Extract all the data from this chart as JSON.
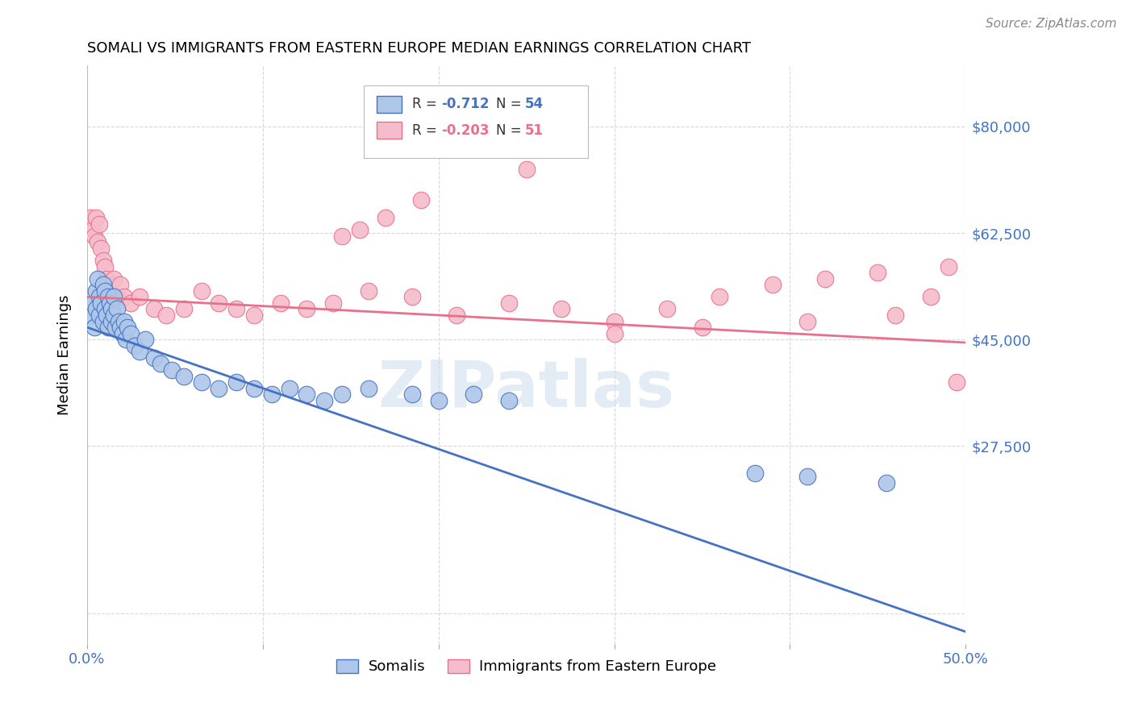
{
  "title": "SOMALI VS IMMIGRANTS FROM EASTERN EUROPE MEDIAN EARNINGS CORRELATION CHART",
  "source": "Source: ZipAtlas.com",
  "ylabel": "Median Earnings",
  "watermark": "ZIPatlas",
  "xlim": [
    0.0,
    0.5
  ],
  "ylim": [
    -5000,
    90000
  ],
  "yticks": [
    0,
    27500,
    45000,
    62500,
    80000
  ],
  "ytick_labels": [
    "",
    "$27,500",
    "$45,000",
    "$62,500",
    "$80,000"
  ],
  "xticks": [
    0.0,
    0.1,
    0.2,
    0.3,
    0.4,
    0.5
  ],
  "xtick_labels": [
    "0.0%",
    "",
    "",
    "",
    "",
    "50.0%"
  ],
  "grid_color": "#d8d8d8",
  "background_color": "#ffffff",
  "tick_color": "#4472c4",
  "somali_color": "#aec6e8",
  "somali_edge_color": "#4472c4",
  "eastern_europe_color": "#f5bccb",
  "eastern_europe_edge_color": "#e8708a",
  "regression_blue_color": "#4472c4",
  "regression_pink_color": "#e8708a",
  "somali_label": "Somalis",
  "eastern_europe_label": "Immigrants from Eastern Europe",
  "somali_x": [
    0.002,
    0.003,
    0.004,
    0.005,
    0.005,
    0.006,
    0.007,
    0.007,
    0.008,
    0.009,
    0.009,
    0.01,
    0.01,
    0.011,
    0.012,
    0.012,
    0.013,
    0.014,
    0.014,
    0.015,
    0.015,
    0.016,
    0.017,
    0.018,
    0.019,
    0.02,
    0.021,
    0.022,
    0.023,
    0.025,
    0.027,
    0.03,
    0.033,
    0.038,
    0.042,
    0.048,
    0.055,
    0.065,
    0.075,
    0.085,
    0.095,
    0.105,
    0.115,
    0.125,
    0.135,
    0.145,
    0.16,
    0.185,
    0.2,
    0.22,
    0.24,
    0.38,
    0.41,
    0.455
  ],
  "somali_y": [
    49000,
    51000,
    47000,
    53000,
    50000,
    55000,
    52000,
    49000,
    51000,
    48000,
    54000,
    50000,
    53000,
    49000,
    52000,
    47000,
    51000,
    50000,
    48000,
    52000,
    49000,
    47000,
    50000,
    48000,
    47000,
    46000,
    48000,
    45000,
    47000,
    46000,
    44000,
    43000,
    45000,
    42000,
    41000,
    40000,
    39000,
    38000,
    37000,
    38000,
    37000,
    36000,
    37000,
    36000,
    35000,
    36000,
    37000,
    36000,
    35000,
    36000,
    35000,
    23000,
    22500,
    21500
  ],
  "eastern_x": [
    0.002,
    0.003,
    0.004,
    0.005,
    0.006,
    0.007,
    0.008,
    0.009,
    0.01,
    0.011,
    0.012,
    0.013,
    0.015,
    0.017,
    0.019,
    0.021,
    0.025,
    0.03,
    0.038,
    0.045,
    0.055,
    0.065,
    0.075,
    0.085,
    0.095,
    0.11,
    0.125,
    0.14,
    0.16,
    0.185,
    0.21,
    0.24,
    0.27,
    0.3,
    0.33,
    0.36,
    0.39,
    0.42,
    0.45,
    0.48,
    0.25,
    0.19,
    0.17,
    0.155,
    0.145,
    0.3,
    0.35,
    0.41,
    0.46,
    0.49,
    0.495
  ],
  "eastern_y": [
    65000,
    63000,
    62000,
    65000,
    61000,
    64000,
    60000,
    58000,
    57000,
    55000,
    54000,
    53000,
    55000,
    52000,
    54000,
    52000,
    51000,
    52000,
    50000,
    49000,
    50000,
    53000,
    51000,
    50000,
    49000,
    51000,
    50000,
    51000,
    53000,
    52000,
    49000,
    51000,
    50000,
    48000,
    50000,
    52000,
    54000,
    55000,
    56000,
    52000,
    73000,
    68000,
    65000,
    63000,
    62000,
    46000,
    47000,
    48000,
    49000,
    57000,
    38000
  ]
}
